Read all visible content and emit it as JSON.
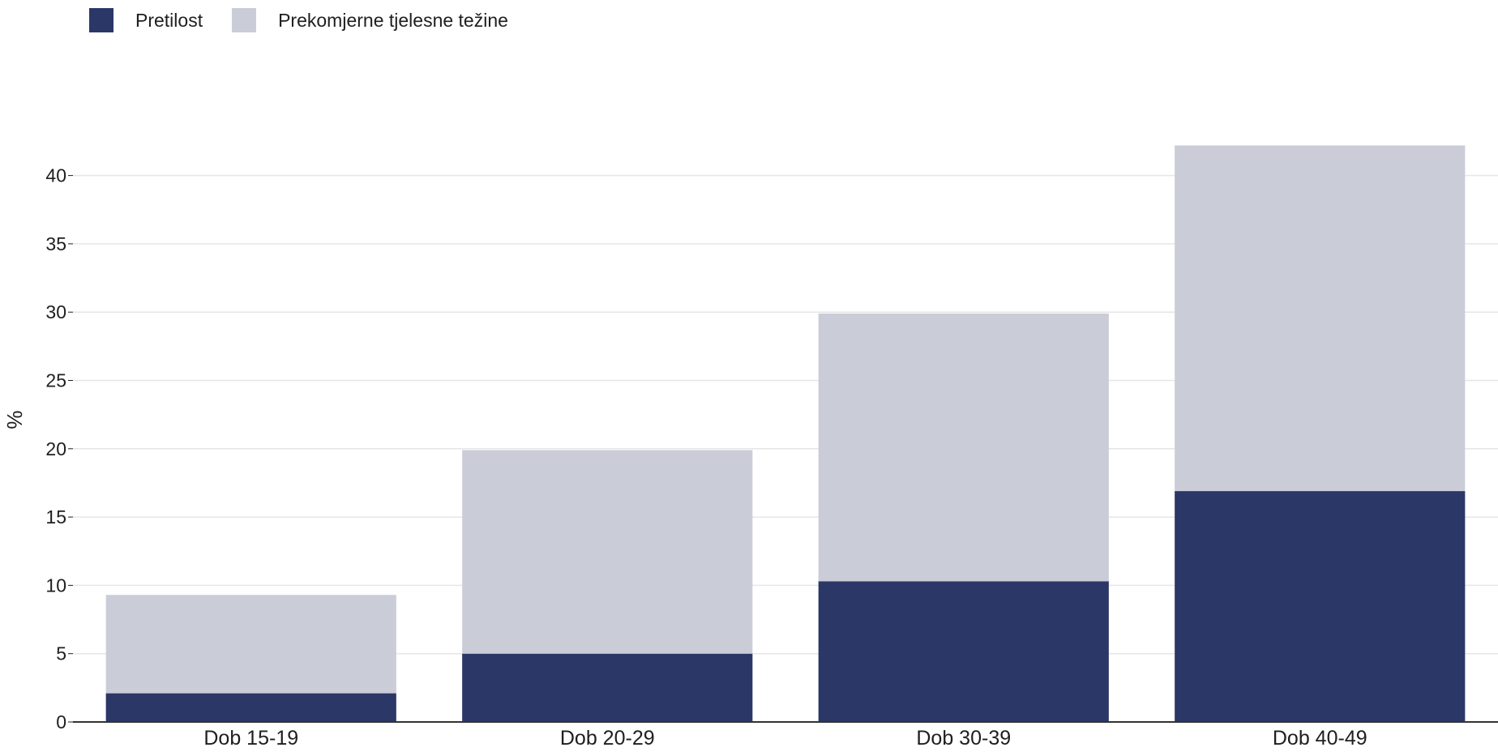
{
  "chart_data": {
    "type": "bar",
    "stacked": true,
    "categories": [
      "Dob 15-19",
      "Dob 20-29",
      "Dob 30-39",
      "Dob 40-49"
    ],
    "series": [
      {
        "name": "Pretilost",
        "color": "#2b3766",
        "values": [
          2.1,
          5.0,
          10.3,
          16.9
        ]
      },
      {
        "name": "Prekomjerne tjelesne težine",
        "color": "#cacdd8",
        "values": [
          7.2,
          14.9,
          19.6,
          25.3
        ]
      }
    ],
    "ylabel": "%",
    "xlabel": "",
    "ylim": [
      0,
      42.2
    ],
    "yticks": [
      0,
      5,
      10,
      15,
      20,
      25,
      30,
      35,
      40
    ],
    "grid": true,
    "legend_position": "top-left"
  }
}
